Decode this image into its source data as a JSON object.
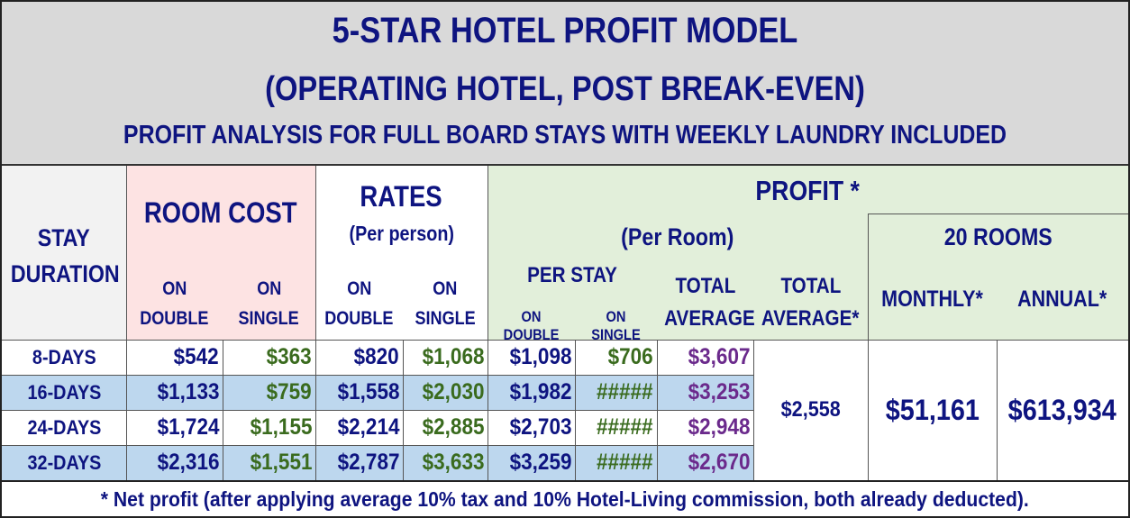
{
  "title": {
    "line1": "5-STAR HOTEL PROFIT MODEL",
    "line2": "(OPERATING HOTEL, POST BREAK-EVEN)",
    "line3": "PROFIT ANALYSIS FOR FULL BOARD STAYS WITH WEEKLY LAUNDRY INCLUDED"
  },
  "headers": {
    "stay_duration_1": "STAY",
    "stay_duration_2": "DURATION",
    "room_cost": "ROOM COST",
    "rates": "RATES",
    "rates_sub": "(Per person)",
    "profit": "PROFIT *",
    "per_room": "(Per Room)",
    "per_stay": "PER STAY",
    "rooms20": "20 ROOMS",
    "on": "ON",
    "double": "DOUBLE",
    "single": "SINGLE",
    "on_double": "ON DOUBLE",
    "on_single": "ON SINGLE",
    "total": "TOTAL",
    "average": "AVERAGE",
    "average_star": "AVERAGE*",
    "monthly": "MONTHLY*",
    "annual": "ANNUAL*"
  },
  "rows": [
    {
      "stay": "8-DAYS",
      "cost_double": "$542",
      "cost_single": "$363",
      "rate_double": "$820",
      "rate_single": "$1,068",
      "profit_double": "$1,098",
      "profit_single": "$706",
      "total_avg": "$3,607"
    },
    {
      "stay": "16-DAYS",
      "cost_double": "$1,133",
      "cost_single": "$759",
      "rate_double": "$1,558",
      "rate_single": "$2,030",
      "profit_double": "$1,982",
      "profit_single": "#####",
      "total_avg": "$3,253"
    },
    {
      "stay": "24-DAYS",
      "cost_double": "$1,724",
      "cost_single": "$1,155",
      "rate_double": "$2,214",
      "rate_single": "$2,885",
      "profit_double": "$2,703",
      "profit_single": "#####",
      "total_avg": "$2,948"
    },
    {
      "stay": "32-DAYS",
      "cost_double": "$2,316",
      "cost_single": "$1,551",
      "rate_double": "$2,787",
      "rate_single": "$3,633",
      "profit_double": "$3,259",
      "profit_single": "#####",
      "total_avg": "$2,670"
    }
  ],
  "summary": {
    "total_average": "$2,558",
    "monthly": "$51,161",
    "annual": "$613,934"
  },
  "footer": "* Net profit (after applying average 10% tax and 10% Hotel-Living commission, both already deducted).",
  "colors": {
    "navy": "#0e1480",
    "green_text": "#3a6b1e",
    "purple_text": "#6b2a8c",
    "title_bg": "#d9d9d9",
    "room_cost_bg": "#fde3e3",
    "profit_bg": "#e2efda",
    "row_blue": "#bdd7ee",
    "stay_header_bg": "#f2f2f2"
  }
}
